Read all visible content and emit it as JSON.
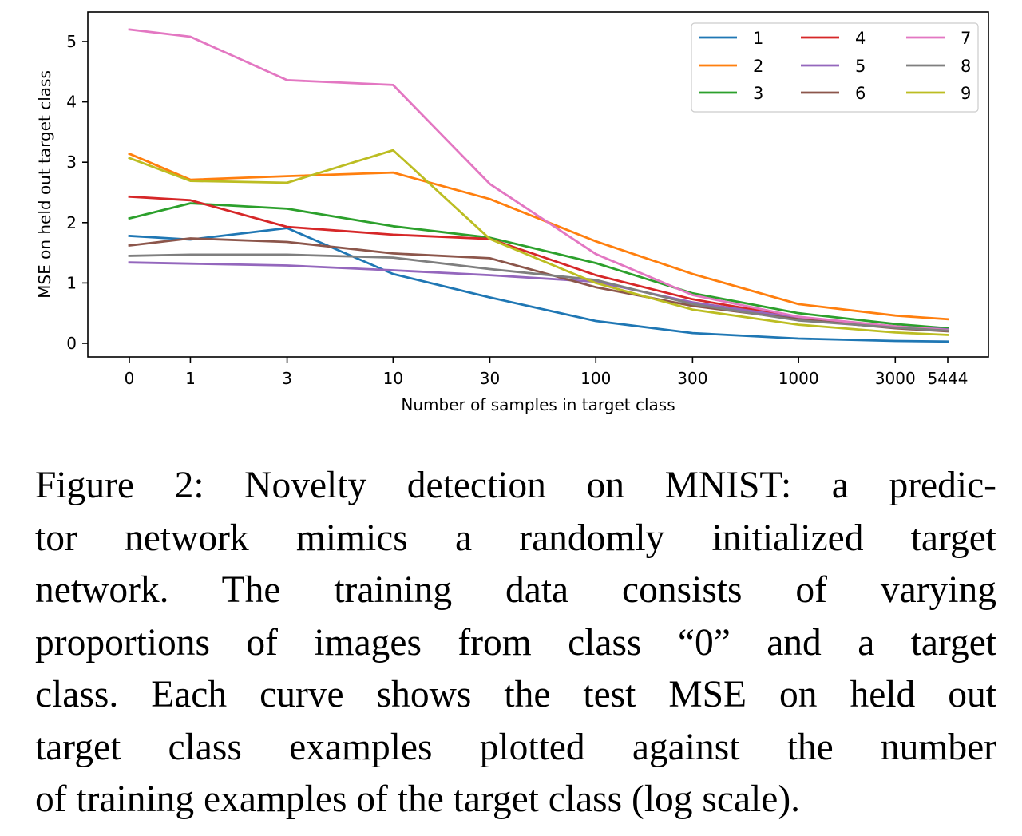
{
  "chart_data": {
    "type": "line",
    "xlabel": "Number of samples in target class",
    "ylabel": "MSE on held out target class",
    "x_scale": "log-categorical",
    "categories": [
      "0",
      "1",
      "3",
      "10",
      "30",
      "100",
      "300",
      "1000",
      "3000",
      "5444"
    ],
    "x": [
      0,
      1,
      3,
      10,
      30,
      100,
      300,
      1000,
      3000,
      5444
    ],
    "yticks": [
      0,
      1,
      2,
      3,
      4,
      5
    ],
    "ylim": [
      -0.25,
      5.45
    ],
    "grid": false,
    "legend_position": "top-right",
    "series": [
      {
        "name": "1",
        "color": "#1f77b4",
        "values": [
          1.78,
          1.72,
          1.91,
          1.15,
          0.76,
          0.37,
          0.17,
          0.08,
          0.04,
          0.03
        ]
      },
      {
        "name": "2",
        "color": "#ff7f0e",
        "values": [
          3.14,
          2.71,
          2.77,
          2.83,
          2.39,
          1.69,
          1.15,
          0.65,
          0.46,
          0.4
        ]
      },
      {
        "name": "3",
        "color": "#2ca02c",
        "values": [
          2.07,
          2.32,
          2.23,
          1.94,
          1.75,
          1.33,
          0.83,
          0.5,
          0.32,
          0.25
        ]
      },
      {
        "name": "4",
        "color": "#d62728",
        "values": [
          2.43,
          2.37,
          1.93,
          1.8,
          1.73,
          1.13,
          0.73,
          0.43,
          0.27,
          0.21
        ]
      },
      {
        "name": "5",
        "color": "#9467bd",
        "values": [
          1.34,
          1.32,
          1.29,
          1.21,
          1.13,
          1.02,
          0.68,
          0.42,
          0.28,
          0.23
        ]
      },
      {
        "name": "6",
        "color": "#8c564b",
        "values": [
          1.62,
          1.74,
          1.68,
          1.49,
          1.41,
          0.93,
          0.62,
          0.4,
          0.25,
          0.2
        ]
      },
      {
        "name": "7",
        "color": "#e377c2",
        "values": [
          5.2,
          5.08,
          4.36,
          4.28,
          2.64,
          1.48,
          0.8,
          0.44,
          0.28,
          0.22
        ]
      },
      {
        "name": "8",
        "color": "#7f7f7f",
        "values": [
          1.45,
          1.47,
          1.47,
          1.42,
          1.23,
          1.05,
          0.65,
          0.38,
          0.26,
          0.21
        ]
      },
      {
        "name": "9",
        "color": "#bcbd22",
        "values": [
          3.07,
          2.69,
          2.66,
          3.2,
          1.73,
          1.0,
          0.56,
          0.31,
          0.18,
          0.14
        ]
      }
    ]
  },
  "caption": {
    "lines": [
      "Figure 2: Novelty detection on MNIST: a predic-",
      "tor network mimics a randomly initialized target",
      "network.  The training data consists of varying",
      "proportions of images from class “0” and a target",
      "class. Each curve shows the test MSE on held out",
      "target class examples plotted against the number",
      "of training examples of the target class (log scale)."
    ]
  }
}
